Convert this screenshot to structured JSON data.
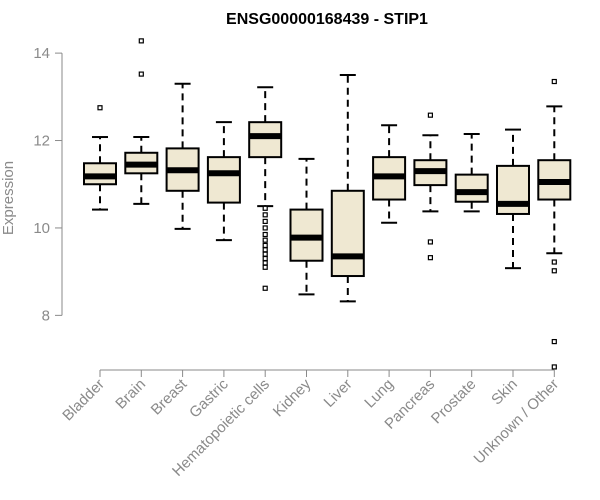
{
  "chart_data": {
    "type": "boxplot",
    "title": "ENSG00000168439 - STIP1",
    "xlabel": "",
    "ylabel": "Expression",
    "ylim": [
      6.75,
      14.3
    ],
    "yticks": [
      8,
      10,
      12,
      14
    ],
    "grid": false,
    "box_fill": "#efe8d2",
    "box_stroke": "#000000",
    "axis_color": "#8a8a8a",
    "categories": [
      "Bladder",
      "Brain",
      "Breast",
      "Gastric",
      "Hematopoietic cells",
      "Kidney",
      "Liver",
      "Lung",
      "Pancreas",
      "Prostate",
      "Skin",
      "Unknown / Other"
    ],
    "boxes": [
      {
        "q1": 11.0,
        "median": 11.18,
        "q3": 11.48,
        "whisker_low": 10.42,
        "whisker_high": 12.08,
        "outliers": [
          12.75
        ]
      },
      {
        "q1": 11.25,
        "median": 11.45,
        "q3": 11.72,
        "whisker_low": 10.55,
        "whisker_high": 12.08,
        "outliers": [
          13.52,
          14.28
        ]
      },
      {
        "q1": 10.85,
        "median": 11.32,
        "q3": 11.82,
        "whisker_low": 9.98,
        "whisker_high": 13.3,
        "outliers": []
      },
      {
        "q1": 10.58,
        "median": 11.25,
        "q3": 11.62,
        "whisker_low": 9.72,
        "whisker_high": 12.42,
        "outliers": []
      },
      {
        "q1": 11.62,
        "median": 12.1,
        "q3": 12.42,
        "whisker_low": 10.5,
        "whisker_high": 13.22,
        "outliers": [
          10.45,
          10.3,
          10.15,
          10.0,
          9.85,
          9.72,
          9.6,
          9.5,
          9.4,
          9.3,
          9.2,
          9.1,
          8.62
        ]
      },
      {
        "q1": 9.25,
        "median": 9.78,
        "q3": 10.42,
        "whisker_low": 8.48,
        "whisker_high": 11.58,
        "outliers": []
      },
      {
        "q1": 8.9,
        "median": 9.35,
        "q3": 10.85,
        "whisker_low": 8.32,
        "whisker_high": 13.5,
        "outliers": []
      },
      {
        "q1": 10.65,
        "median": 11.18,
        "q3": 11.62,
        "whisker_low": 10.12,
        "whisker_high": 12.35,
        "outliers": []
      },
      {
        "q1": 10.98,
        "median": 11.3,
        "q3": 11.55,
        "whisker_low": 10.38,
        "whisker_high": 12.12,
        "outliers": [
          12.58,
          9.68,
          9.32
        ]
      },
      {
        "q1": 10.6,
        "median": 10.82,
        "q3": 11.22,
        "whisker_low": 10.38,
        "whisker_high": 12.15,
        "outliers": []
      },
      {
        "q1": 10.32,
        "median": 10.55,
        "q3": 11.42,
        "whisker_low": 9.08,
        "whisker_high": 12.25,
        "outliers": []
      },
      {
        "q1": 10.65,
        "median": 11.05,
        "q3": 11.55,
        "whisker_low": 9.42,
        "whisker_high": 12.78,
        "outliers": [
          13.35,
          9.22,
          9.02,
          7.4,
          6.82
        ]
      }
    ]
  }
}
